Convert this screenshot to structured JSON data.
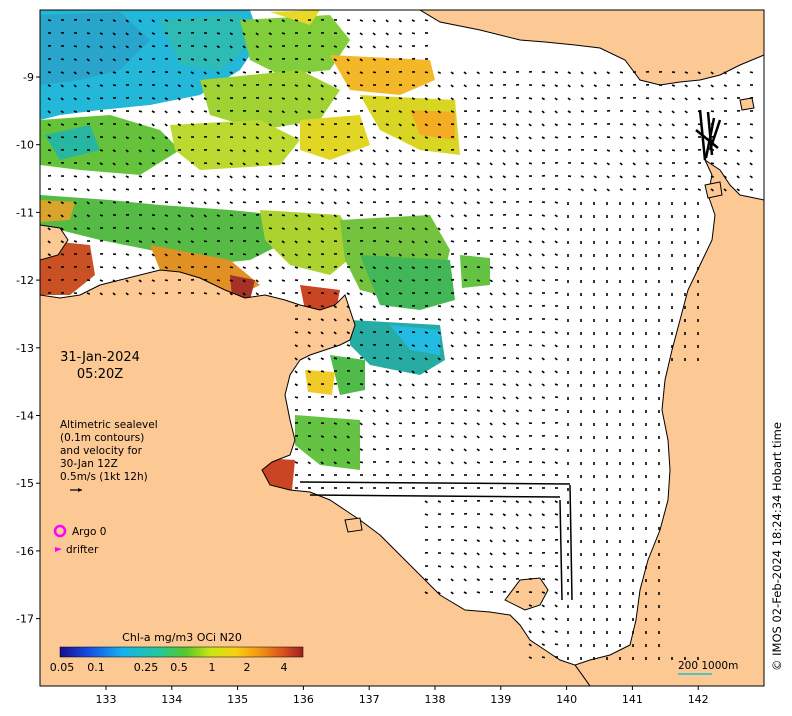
{
  "map": {
    "date_line": "31-Jan-2024",
    "time_line": "05:20Z",
    "legend_text": [
      "Altimetric sealevel",
      "(0.1m contours)",
      "and velocity for",
      "30-Jan 12Z",
      "0.5m/s (1kt 12h)"
    ],
    "argo_label": "Argo 0",
    "drifter_label": "drifter",
    "colorbar_title": "Chl-a mg/m3 OCi N20",
    "colorbar_ticks": [
      "0.05",
      "0.1",
      "0.25",
      "0.5",
      "1",
      "2",
      "4"
    ],
    "scale_label": "200  1000m",
    "credit": "© IMOS 02-Feb-2024 18:24:34 Hobart time",
    "lon_ticks": [
      "133",
      "134",
      "135",
      "136",
      "137",
      "138",
      "139",
      "140",
      "141",
      "142"
    ],
    "lat_ticks": [
      "-9",
      "-10",
      "-11",
      "-12",
      "-13",
      "-14",
      "-15",
      "-16",
      "-17"
    ],
    "colors": {
      "land": "#fcc894",
      "ocean": "#ffffff",
      "argo": "#ff00ff",
      "drifter": "#ff00ff",
      "scale_bar": "#20c0c0"
    }
  }
}
